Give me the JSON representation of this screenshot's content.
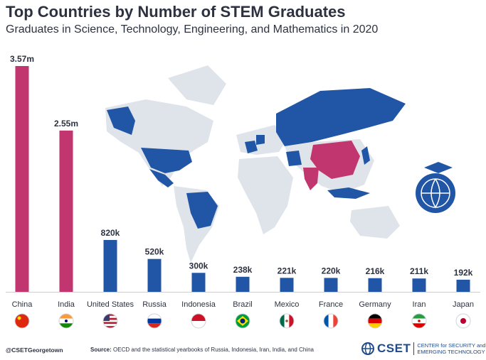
{
  "chart_data": {
    "type": "bar",
    "title": "Top Countries by Number of STEM Graduates",
    "subtitle": "Graduates in Science, Technology, Engineering, and Mathematics in 2020",
    "categories": [
      "China",
      "India",
      "United States",
      "Russia",
      "Indonesia",
      "Brazil",
      "Mexico",
      "France",
      "Germany",
      "Iran",
      "Japan"
    ],
    "values": [
      3.57,
      2.55,
      0.82,
      0.52,
      0.3,
      0.238,
      0.221,
      0.22,
      0.216,
      0.211,
      0.192
    ],
    "value_labels": [
      "3.57m",
      "2.55m",
      "820k",
      "520k",
      "300k",
      "238k",
      "221k",
      "220k",
      "216k",
      "211k",
      "192k"
    ],
    "unit": "millions",
    "bar_colors": [
      "#c2366f",
      "#c2366f",
      "#2156a6",
      "#2156a6",
      "#2156a6",
      "#2156a6",
      "#2156a6",
      "#2156a6",
      "#2156a6",
      "#2156a6",
      "#2156a6"
    ],
    "ylim": [
      0,
      3.57
    ],
    "grid": false,
    "legend": "none"
  },
  "flags": [
    "china-flag-icon",
    "india-flag-icon",
    "usa-flag-icon",
    "russia-flag-icon",
    "indonesia-flag-icon",
    "brazil-flag-icon",
    "mexico-flag-icon",
    "france-flag-icon",
    "germany-flag-icon",
    "iran-flag-icon",
    "japan-flag-icon"
  ],
  "colors": {
    "top_two": "#c2366f",
    "others": "#2156a6",
    "map_land": "#dfe3ea",
    "text": "#2d3240"
  },
  "footer": {
    "handle": "@CSETGeorgetown",
    "source_label": "Source:",
    "source_text": "OECD and the statistical yearbooks of Russia, Indonesia, Iran, India, and China",
    "logo": "CSET",
    "logo_tagline_1": "CENTER for SECURITY and",
    "logo_tagline_2": "EMERGING TECHNOLOGY"
  }
}
